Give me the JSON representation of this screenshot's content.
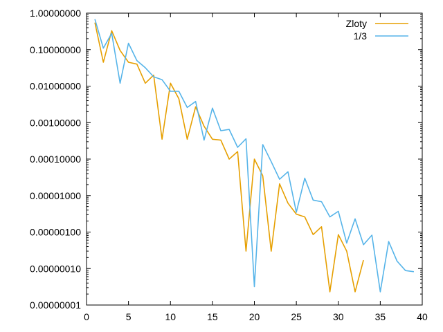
{
  "chart_data": {
    "type": "line",
    "title": "",
    "xlabel": "",
    "ylabel": "",
    "xlim": [
      0,
      40
    ],
    "ylim": [
      1e-08,
      1
    ],
    "yscale": "log",
    "grid": false,
    "legend_position": "top-right",
    "x_ticks": [
      0,
      5,
      10,
      15,
      20,
      25,
      30,
      35,
      40
    ],
    "y_ticks": [
      1,
      0.1,
      0.01,
      0.001,
      0.0001,
      1e-05,
      1e-06,
      1e-07,
      1e-08
    ],
    "x_tick_labels": [
      "0",
      "5",
      "10",
      "15",
      "20",
      "25",
      "30",
      "35",
      "40"
    ],
    "y_tick_labels": [
      "1.00000000",
      "0.10000000",
      "0.01000000",
      "0.00100000",
      "0.00010000",
      "0.00001000",
      "0.00000100",
      "0.00000010",
      "0.00000001"
    ],
    "series": [
      {
        "name": "Zloty",
        "color": "#e69f00",
        "x": [
          1,
          2,
          3,
          4,
          5,
          6,
          7,
          8,
          9,
          10,
          11,
          12,
          13,
          14,
          15,
          16,
          17,
          18,
          19,
          20,
          21,
          22,
          23,
          24,
          25,
          26,
          27,
          28,
          29,
          30,
          31,
          32,
          33
        ],
        "y": [
          0.55,
          0.045,
          0.33,
          0.095,
          0.045,
          0.04,
          0.012,
          0.02,
          0.00035,
          0.012,
          0.0045,
          0.00035,
          0.0027,
          0.0008,
          0.00035,
          0.00033,
          0.0001,
          0.00016,
          3e-07,
          0.0001,
          3.5e-05,
          3e-07,
          2.1e-05,
          6.2e-06,
          3.1e-06,
          2.6e-06,
          8.5e-07,
          1.4e-06,
          2.3e-08,
          8.5e-07,
          3e-07,
          2.3e-08,
          1.7e-07
        ]
      },
      {
        "name": "1/3",
        "color": "#56b4e9",
        "x": [
          1,
          2,
          3,
          4,
          5,
          6,
          7,
          8,
          9,
          10,
          11,
          12,
          13,
          14,
          15,
          16,
          17,
          18,
          19,
          20,
          21,
          22,
          23,
          24,
          25,
          26,
          27,
          28,
          29,
          30,
          31,
          32,
          33,
          34,
          35,
          36,
          37,
          38,
          39
        ],
        "y": [
          0.68,
          0.11,
          0.28,
          0.012,
          0.15,
          0.05,
          0.032,
          0.018,
          0.015,
          0.0072,
          0.0072,
          0.0026,
          0.0038,
          0.00033,
          0.0025,
          0.0006,
          0.00065,
          0.00021,
          0.00036,
          3.2e-08,
          0.00025,
          8.5e-05,
          2.8e-05,
          4.5e-05,
          3.5e-06,
          3e-05,
          7.5e-06,
          6.8e-06,
          2.6e-06,
          3.7e-06,
          5e-07,
          2.3e-06,
          4.5e-07,
          8.2e-07,
          2.3e-08,
          5.5e-07,
          1.6e-07,
          8.8e-08,
          8.2e-08
        ]
      }
    ]
  }
}
